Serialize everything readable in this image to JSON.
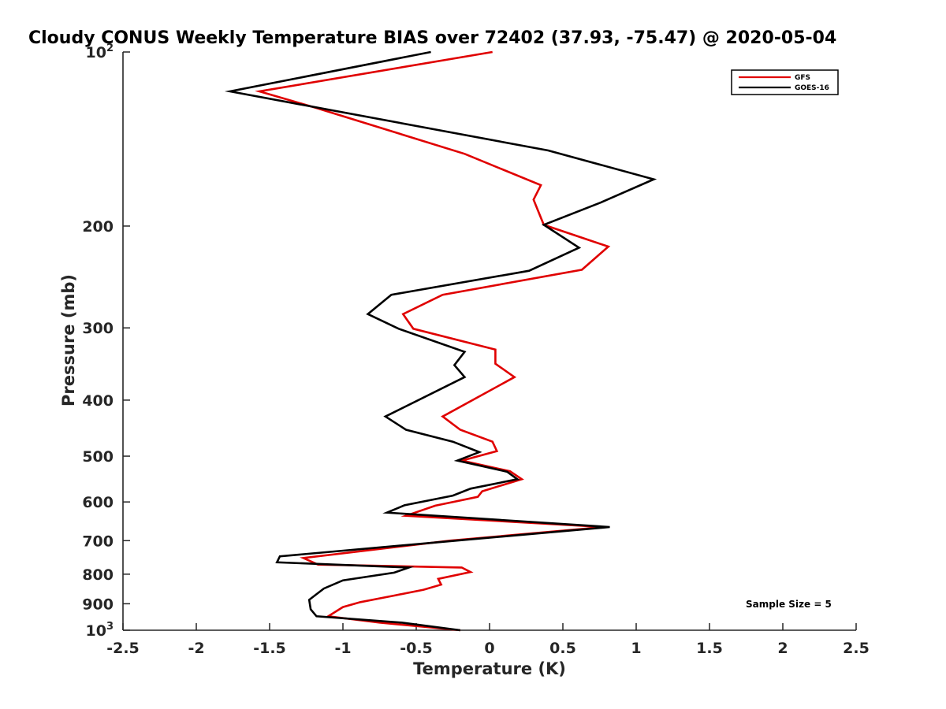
{
  "chart_data": {
    "type": "line",
    "title": "Cloudy CONUS Weekly Temperature BIAS over 72402 (37.93, -75.47) @ 2020-05-04",
    "xlabel": "Temperature (K)",
    "ylabel": "Pressure (mb)",
    "xlim": [
      -2.5,
      2.5
    ],
    "ylim": [
      100,
      1000
    ],
    "y_scale": "log",
    "y_reversed": true,
    "grid": false,
    "legend_position": "top-right",
    "note": "Sample Size = 5",
    "x_ticks": [
      "-2.5",
      "-2",
      "-1.5",
      "-1",
      "-0.5",
      "0",
      "0.5",
      "1",
      "1.5",
      "2",
      "2.5"
    ],
    "x_tick_values": [
      -2.5,
      -2,
      -1.5,
      -1,
      -0.5,
      0,
      0.5,
      1,
      1.5,
      2,
      2.5
    ],
    "y_ticks": [
      {
        "value": 100,
        "base": "10",
        "exp": "2"
      },
      {
        "value": 200,
        "base": "200",
        "exp": ""
      },
      {
        "value": 300,
        "base": "300",
        "exp": ""
      },
      {
        "value": 400,
        "base": "400",
        "exp": ""
      },
      {
        "value": 500,
        "base": "500",
        "exp": ""
      },
      {
        "value": 600,
        "base": "600",
        "exp": ""
      },
      {
        "value": 700,
        "base": "700",
        "exp": ""
      },
      {
        "value": 800,
        "base": "800",
        "exp": ""
      },
      {
        "value": 900,
        "base": "900",
        "exp": ""
      },
      {
        "value": 1000,
        "base": "10",
        "exp": "3"
      }
    ],
    "series": [
      {
        "name": "GFS",
        "color": "#e00000",
        "points": [
          [
            0.02,
            100
          ],
          [
            -1.57,
            117
          ],
          [
            -1.18,
            125
          ],
          [
            -0.17,
            150
          ],
          [
            0.35,
            170
          ],
          [
            0.3,
            180
          ],
          [
            0.33,
            188
          ],
          [
            0.37,
            199
          ],
          [
            0.81,
            217
          ],
          [
            0.63,
            238
          ],
          [
            -0.32,
            263
          ],
          [
            -0.59,
            284
          ],
          [
            -0.52,
            301
          ],
          [
            0.04,
            327
          ],
          [
            0.04,
            346
          ],
          [
            0.17,
            365
          ],
          [
            -0.32,
            427
          ],
          [
            -0.2,
            450
          ],
          [
            0.02,
            472
          ],
          [
            0.05,
            490
          ],
          [
            -0.19,
            509
          ],
          [
            0.14,
            531
          ],
          [
            0.22,
            548
          ],
          [
            -0.05,
            575
          ],
          [
            -0.08,
            588
          ],
          [
            -0.37,
            609
          ],
          [
            -0.57,
            634
          ],
          [
            0.78,
            663
          ],
          [
            -0.27,
            700
          ],
          [
            -1.27,
            750
          ],
          [
            -1.17,
            770
          ],
          [
            -0.19,
            779
          ],
          [
            -0.13,
            793
          ],
          [
            -0.35,
            815
          ],
          [
            -0.33,
            834
          ],
          [
            -0.45,
            851
          ],
          [
            -0.65,
            871
          ],
          [
            -0.88,
            894
          ],
          [
            -1.0,
            912
          ],
          [
            -1.1,
            946
          ],
          [
            -0.75,
            970
          ],
          [
            -0.2,
            1000
          ]
        ]
      },
      {
        "name": "GOES-16",
        "color": "#000000",
        "points": [
          [
            -0.4,
            100
          ],
          [
            -1.77,
            117
          ],
          [
            0.4,
            148
          ],
          [
            1.12,
            166
          ],
          [
            0.76,
            182
          ],
          [
            0.37,
            199
          ],
          [
            0.61,
            218
          ],
          [
            0.27,
            239
          ],
          [
            -0.67,
            263
          ],
          [
            -0.83,
            284
          ],
          [
            -0.62,
            301
          ],
          [
            -0.17,
            330
          ],
          [
            -0.24,
            348
          ],
          [
            -0.17,
            365
          ],
          [
            -0.71,
            427
          ],
          [
            -0.57,
            450
          ],
          [
            -0.25,
            472
          ],
          [
            -0.07,
            492
          ],
          [
            -0.22,
            509
          ],
          [
            0.12,
            532
          ],
          [
            0.19,
            548
          ],
          [
            -0.13,
            569
          ],
          [
            -0.25,
            585
          ],
          [
            -0.58,
            608
          ],
          [
            -0.7,
            626
          ],
          [
            0.82,
            663
          ],
          [
            -0.23,
            700
          ],
          [
            -1.43,
            745
          ],
          [
            -1.45,
            763
          ],
          [
            -0.55,
            779
          ],
          [
            -0.65,
            795
          ],
          [
            -1.0,
            820
          ],
          [
            -1.13,
            847
          ],
          [
            -1.23,
            886
          ],
          [
            -1.22,
            920
          ],
          [
            -1.18,
            946
          ],
          [
            -0.6,
            970
          ],
          [
            -0.2,
            1000
          ]
        ]
      }
    ]
  }
}
